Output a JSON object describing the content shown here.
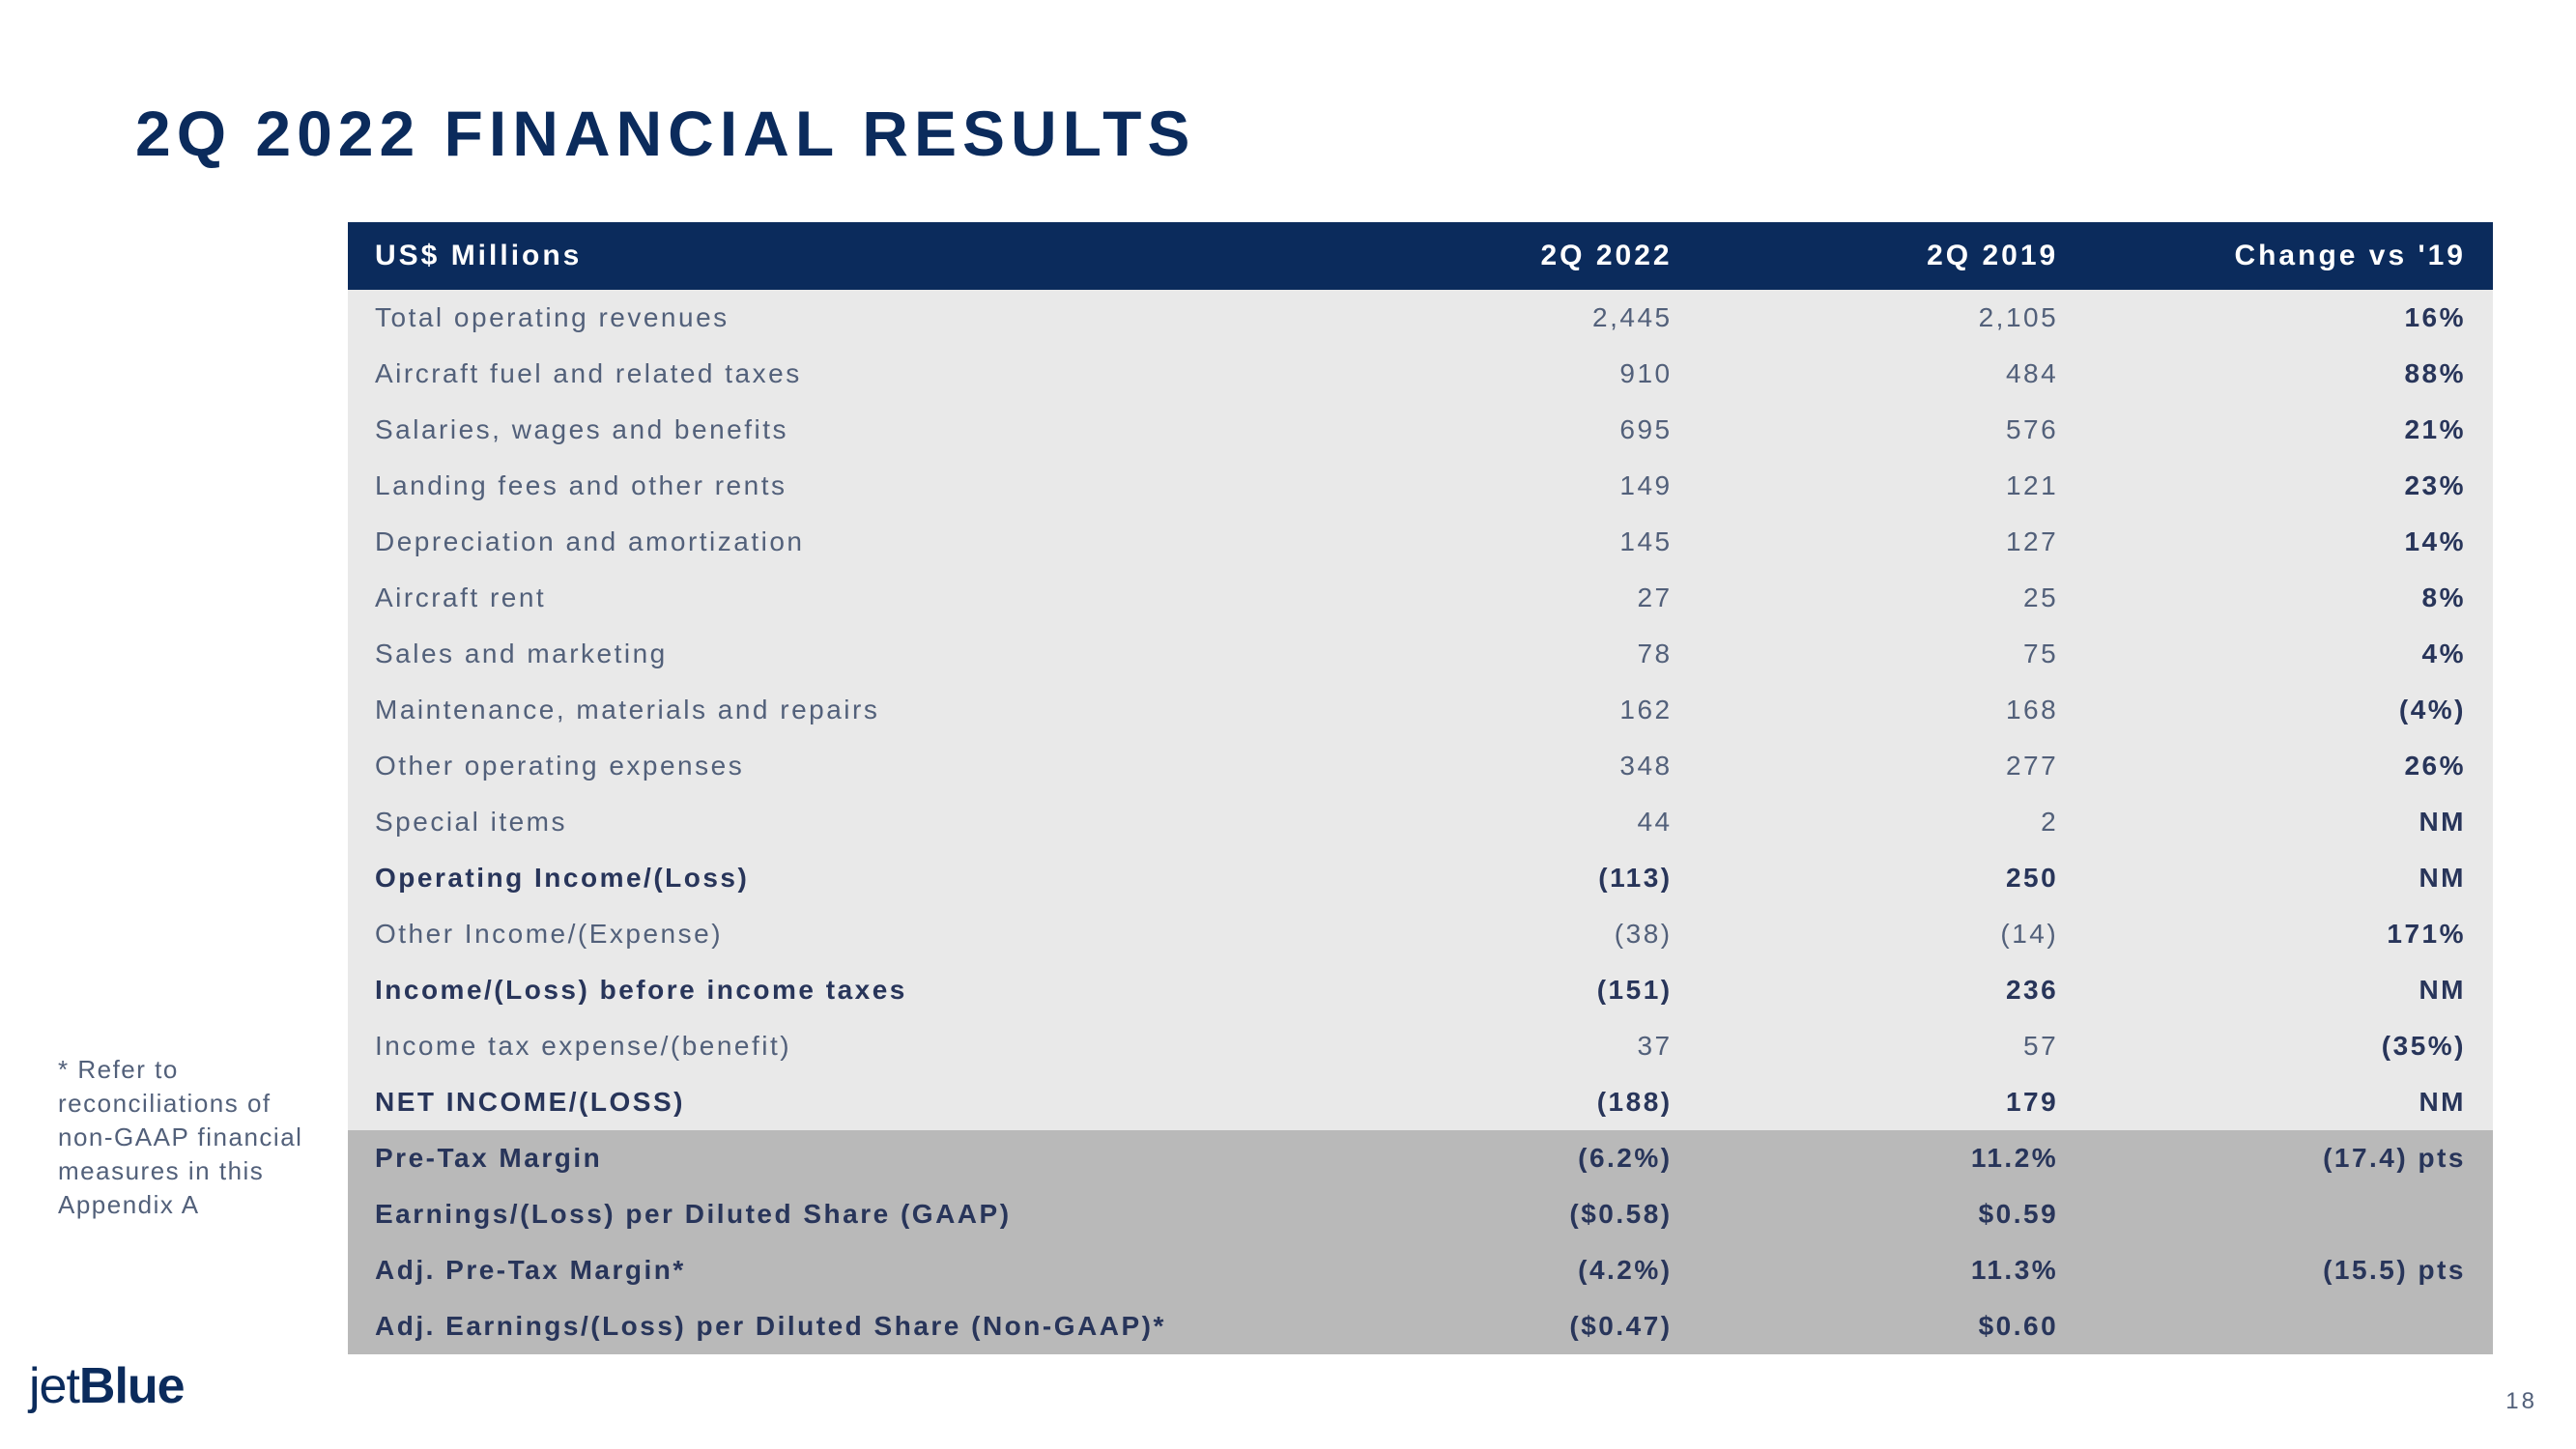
{
  "title": "2Q 2022 FINANCIAL RESULTS",
  "headers": {
    "label": "US$ Millions",
    "colA": "2Q 2022",
    "colB": "2Q 2019",
    "colC": "Change vs '19"
  },
  "colors": {
    "header_bg": "#0b2b5c",
    "text_primary": "#0b2b5c",
    "text_body": "#52607a",
    "text_bold": "#28355a",
    "bg_white_section": "#e9e9e9",
    "bg_gray_section": "#b9b9b9"
  },
  "rows": [
    {
      "section": "white",
      "bold": false,
      "label": "Total operating revenues",
      "a": "2,445",
      "b": "2,105",
      "c": "16%"
    },
    {
      "section": "white",
      "bold": false,
      "label": "Aircraft fuel and related taxes",
      "a": "910",
      "b": "484",
      "c": "88%"
    },
    {
      "section": "white",
      "bold": false,
      "label": "Salaries, wages and benefits",
      "a": "695",
      "b": "576",
      "c": "21%"
    },
    {
      "section": "white",
      "bold": false,
      "label": "Landing fees and other rents",
      "a": "149",
      "b": "121",
      "c": "23%"
    },
    {
      "section": "white",
      "bold": false,
      "label": "Depreciation and amortization",
      "a": "145",
      "b": "127",
      "c": "14%"
    },
    {
      "section": "white",
      "bold": false,
      "label": "Aircraft rent",
      "a": "27",
      "b": "25",
      "c": "8%"
    },
    {
      "section": "white",
      "bold": false,
      "label": "Sales and marketing",
      "a": "78",
      "b": "75",
      "c": "4%"
    },
    {
      "section": "white",
      "bold": false,
      "label": "Maintenance, materials and repairs",
      "a": "162",
      "b": "168",
      "c": "(4%)"
    },
    {
      "section": "white",
      "bold": false,
      "label": "Other operating expenses",
      "a": "348",
      "b": "277",
      "c": "26%"
    },
    {
      "section": "white",
      "bold": false,
      "label": "Special items",
      "a": "44",
      "b": "2",
      "c": "NM"
    },
    {
      "section": "white",
      "bold": true,
      "label": "Operating Income/(Loss)",
      "a": "(113)",
      "b": "250",
      "c": "NM"
    },
    {
      "section": "white",
      "bold": false,
      "label": "Other Income/(Expense)",
      "a": "(38)",
      "b": "(14)",
      "c": "171%"
    },
    {
      "section": "white",
      "bold": true,
      "label": "Income/(Loss) before income taxes",
      "a": "(151)",
      "b": "236",
      "c": "NM"
    },
    {
      "section": "white",
      "bold": false,
      "label": "Income tax expense/(benefit)",
      "a": "37",
      "b": "57",
      "c": "(35%)"
    },
    {
      "section": "white",
      "bold": true,
      "label": "NET INCOME/(LOSS)",
      "a": "(188)",
      "b": "179",
      "c": "NM"
    },
    {
      "section": "gray",
      "bold": true,
      "label": "Pre-Tax Margin",
      "a": "(6.2%)",
      "b": "11.2%",
      "c": "(17.4) pts"
    },
    {
      "section": "gray",
      "bold": true,
      "label": "Earnings/(Loss) per Diluted Share (GAAP)",
      "a": "($0.58)",
      "b": "$0.59",
      "c": ""
    },
    {
      "section": "gray",
      "bold": true,
      "label": "Adj. Pre-Tax Margin*",
      "a": "(4.2%)",
      "b": "11.3%",
      "c": "(15.5) pts"
    },
    {
      "section": "gray",
      "bold": true,
      "label": "Adj. Earnings/(Loss) per Diluted Share (Non-GAAP)*",
      "a": "($0.47)",
      "b": "$0.60",
      "c": ""
    }
  ],
  "footnote": "* Refer to reconciliations of non-GAAP financial measures in this Appendix A",
  "logo": {
    "part1": "jet",
    "part2": "Blue"
  },
  "page_number": "18"
}
